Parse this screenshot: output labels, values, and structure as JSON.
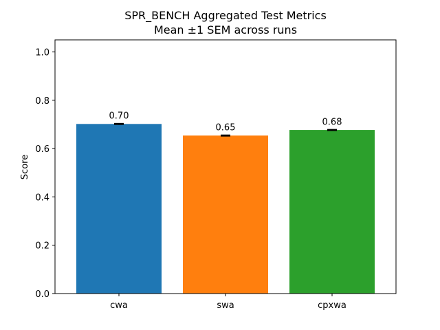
{
  "chart_data": {
    "type": "bar",
    "title": "SPR_BENCH Aggregated Test Metrics",
    "subtitle": "Mean ±1 SEM across runs",
    "xlabel": "",
    "ylabel": "Score",
    "categories": [
      "cwa",
      "swa",
      "cpxwa"
    ],
    "values": [
      0.702,
      0.654,
      0.677
    ],
    "errors": [
      0.002,
      0.002,
      0.002
    ],
    "data_labels": [
      "0.70",
      "0.65",
      "0.68"
    ],
    "colors": [
      "#1f77b4",
      "#ff7f0e",
      "#2ca02c"
    ],
    "ylim": [
      0,
      1.05
    ],
    "yticks": [
      0.0,
      0.2,
      0.4,
      0.6,
      0.8,
      1.0
    ],
    "ytick_labels": [
      "0.0",
      "0.2",
      "0.4",
      "0.6",
      "0.8",
      "1.0"
    ],
    "grid": false,
    "legend": "none"
  }
}
